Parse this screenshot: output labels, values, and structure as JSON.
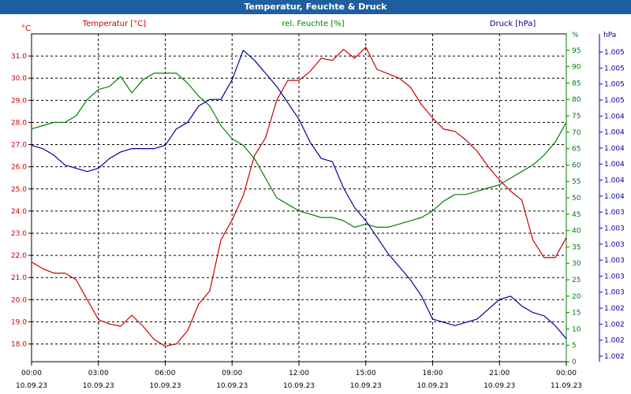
{
  "title": "Temperatur, Feuchte & Druck",
  "colors": {
    "temp": "#cc0000",
    "hum": "#008000",
    "press": "#000099",
    "title_bg": "#1f5fa0",
    "grid": "#000000"
  },
  "chart_data": {
    "type": "line",
    "title": "Temperatur, Feuchte & Druck",
    "grid": true,
    "x_ticks": [
      {
        "time": "00:00",
        "date": "10.09.23"
      },
      {
        "time": "03:00",
        "date": "10.09.23"
      },
      {
        "time": "06:00",
        "date": "10.09.23"
      },
      {
        "time": "09:00",
        "date": "10.09.23"
      },
      {
        "time": "12:00",
        "date": "10.09.23"
      },
      {
        "time": "15:00",
        "date": "10.09.23"
      },
      {
        "time": "18:00",
        "date": "10.09.23"
      },
      {
        "time": "21:00",
        "date": "10.09.23"
      },
      {
        "time": "00:00",
        "date": "11.09.23"
      }
    ],
    "axes": {
      "temp": {
        "label": "Temperatur [°C]",
        "unit": "°C",
        "ylim": [
          17.2,
          32.0
        ],
        "ticks": [
          "18.0",
          "19.0",
          "20.0",
          "21.0",
          "22.0",
          "23.0",
          "24.0",
          "25.0",
          "26.0",
          "27.0",
          "28.0",
          "29.0",
          "30.0",
          "31.0"
        ],
        "tick_values": [
          18,
          19,
          20,
          21,
          22,
          23,
          24,
          25,
          26,
          27,
          28,
          29,
          30,
          31
        ]
      },
      "hum": {
        "label": "rel. Feuchte [%]",
        "unit": "%",
        "ylim": [
          0,
          100
        ],
        "ticks": [
          "0",
          "5",
          "10",
          "15",
          "20",
          "25",
          "30",
          "35",
          "40",
          "45",
          "50",
          "55",
          "60",
          "65",
          "70",
          "75",
          "80",
          "85",
          "90",
          "95"
        ],
        "tick_values": [
          0,
          5,
          10,
          15,
          20,
          25,
          30,
          35,
          40,
          45,
          50,
          55,
          60,
          65,
          70,
          75,
          80,
          85,
          90,
          95
        ]
      },
      "press": {
        "label": "Druck [hPa]",
        "unit": "hPa",
        "ticks": [
          "1.002",
          "1.002",
          "1.002",
          "1.002",
          "1.003",
          "1.003",
          "1.003",
          "1.003",
          "1.003",
          "1.003",
          "1.004",
          "1.004",
          "1.004",
          "1.004",
          "1.004",
          "1.004",
          "1.005",
          "1.005",
          "1.005",
          "1.005"
        ]
      }
    },
    "series": [
      {
        "name": "Temperatur [°C]",
        "axis": "temp",
        "x": [
          0,
          0.5,
          1,
          1.5,
          2,
          2.5,
          3,
          3.5,
          4,
          4.5,
          5,
          5.5,
          6,
          6.5,
          7,
          7.5,
          8,
          8.5,
          9,
          9.5,
          10,
          10.5,
          11,
          11.5,
          12,
          12.5,
          13,
          13.5,
          14,
          14.5,
          15,
          15.5,
          16,
          16.5,
          17,
          17.5,
          18,
          18.5,
          19,
          19.5,
          20,
          20.5,
          21,
          21.5,
          22,
          22.5,
          23,
          23.5,
          24
        ],
        "values": [
          21.7,
          21.4,
          21.2,
          21.2,
          20.9,
          20.0,
          19.1,
          18.9,
          18.8,
          19.3,
          18.8,
          18.2,
          17.9,
          18.0,
          18.6,
          19.8,
          20.4,
          22.7,
          23.6,
          24.7,
          26.5,
          27.3,
          29.0,
          29.9,
          29.9,
          30.3,
          30.9,
          30.8,
          31.3,
          30.9,
          31.4,
          30.4,
          30.2,
          30.0,
          29.6,
          28.8,
          28.2,
          27.7,
          27.6,
          27.2,
          26.7,
          26.0,
          25.4,
          24.9,
          24.5,
          22.7,
          21.9,
          21.9,
          22.8
        ]
      },
      {
        "name": "rel. Feuchte [%]",
        "axis": "hum",
        "x": [
          0,
          0.5,
          1,
          1.5,
          2,
          2.5,
          3,
          3.5,
          4,
          4.5,
          5,
          5.5,
          6,
          6.5,
          7,
          7.5,
          8,
          8.5,
          9,
          9.5,
          10,
          10.5,
          11,
          11.5,
          12,
          12.5,
          13,
          13.5,
          14,
          14.5,
          15,
          15.5,
          16,
          16.5,
          17,
          17.5,
          18,
          18.5,
          19,
          19.5,
          20,
          20.5,
          21,
          21.5,
          22,
          22.5,
          23,
          23.5,
          24
        ],
        "values": [
          71,
          72,
          73,
          73,
          75,
          80,
          83,
          84,
          87,
          82,
          86,
          88,
          88,
          88,
          85,
          81,
          78,
          72,
          68,
          66,
          62,
          56,
          50,
          48,
          46,
          45,
          44,
          44,
          43,
          41,
          42,
          41,
          41,
          42,
          43,
          44,
          46,
          49,
          51,
          51,
          52,
          53,
          54,
          56,
          58,
          60,
          63,
          67,
          73
        ]
      },
      {
        "name": "Druck [hPa]",
        "axis": "press",
        "x": [
          0,
          0.5,
          1,
          1.5,
          2,
          2.5,
          3,
          3.5,
          4,
          4.5,
          5,
          5.5,
          6,
          6.5,
          7,
          7.5,
          8,
          8.5,
          9,
          9.5,
          10,
          10.5,
          11,
          11.5,
          12,
          12.5,
          13,
          13.5,
          14,
          14.5,
          15,
          15.5,
          16,
          16.5,
          17,
          17.5,
          18,
          18.5,
          19,
          19.5,
          20,
          20.5,
          21,
          21.5,
          22,
          22.5,
          23,
          23.5,
          24
        ],
        "values": [
          66,
          65,
          63,
          60,
          59,
          58,
          59,
          62,
          64,
          65,
          65,
          65,
          66,
          71,
          73,
          78,
          80,
          80,
          86,
          95,
          92,
          88,
          84,
          79,
          74,
          67,
          62,
          61,
          53,
          47,
          43,
          38,
          33,
          29,
          25,
          20,
          13,
          12,
          11,
          12,
          13,
          16,
          19,
          20,
          17,
          15,
          14,
          11,
          7
        ]
      }
    ]
  }
}
